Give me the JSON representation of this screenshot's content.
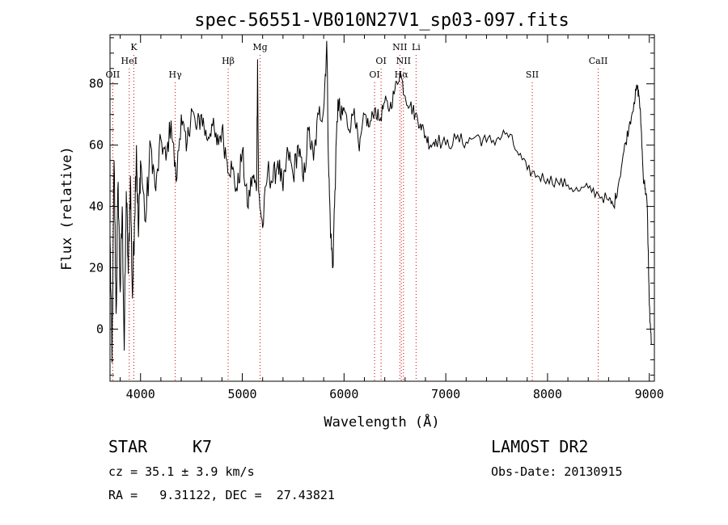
{
  "chart_data": {
    "type": "line",
    "title": "spec-56551-VB010N27V1_sp03-097.fits",
    "xlabel": "Wavelength (Å)",
    "ylabel": "Flux (relative)",
    "xlim": [
      3700,
      9050
    ],
    "ylim": [
      -17,
      96
    ],
    "xticks": [
      4000,
      5000,
      6000,
      7000,
      8000,
      9000
    ],
    "yticks": [
      0,
      20,
      40,
      60,
      80
    ],
    "grid": false,
    "line_color": "#000000",
    "marker_line_color": "#cc0000",
    "spectral_lines": [
      {
        "label": "OII",
        "wavelength": 3727,
        "row": 3
      },
      {
        "label": "K",
        "wavelength": 3934,
        "row": 1
      },
      {
        "label": "HeI",
        "wavelength": 3889,
        "row": 2
      },
      {
        "label": "Hγ",
        "wavelength": 4341,
        "row": 3
      },
      {
        "label": "Hβ",
        "wavelength": 4861,
        "row": 2
      },
      {
        "label": "Mg",
        "wavelength": 5175,
        "row": 1
      },
      {
        "label": "OI",
        "wavelength": 6300,
        "row": 3
      },
      {
        "label": "OI",
        "wavelength": 6364,
        "row": 2
      },
      {
        "label": "NII",
        "wavelength": 6548,
        "row": 1
      },
      {
        "label": "NII",
        "wavelength": 6584,
        "row": 2
      },
      {
        "label": "Hα",
        "wavelength": 6563,
        "row": 3
      },
      {
        "label": "Li",
        "wavelength": 6708,
        "row": 1
      },
      {
        "label": "SII",
        "wavelength": 7850,
        "row": 3
      },
      {
        "label": "CaII",
        "wavelength": 8498,
        "row": 2
      }
    ],
    "series": [
      {
        "points": [
          [
            3700,
            30
          ],
          [
            3720,
            -11
          ],
          [
            3740,
            55
          ],
          [
            3760,
            5
          ],
          [
            3780,
            48
          ],
          [
            3800,
            12
          ],
          [
            3820,
            40
          ],
          [
            3840,
            -7
          ],
          [
            3860,
            45
          ],
          [
            3880,
            18
          ],
          [
            3900,
            50
          ],
          [
            3920,
            10
          ],
          [
            3940,
            35
          ],
          [
            3960,
            60
          ],
          [
            3980,
            30
          ],
          [
            4000,
            55
          ],
          [
            4050,
            35
          ],
          [
            4100,
            60
          ],
          [
            4150,
            45
          ],
          [
            4200,
            62
          ],
          [
            4250,
            55
          ],
          [
            4300,
            68
          ],
          [
            4350,
            48
          ],
          [
            4400,
            70
          ],
          [
            4450,
            58
          ],
          [
            4500,
            72
          ],
          [
            4550,
            65
          ],
          [
            4600,
            70
          ],
          [
            4650,
            62
          ],
          [
            4700,
            67
          ],
          [
            4750,
            60
          ],
          [
            4800,
            65
          ],
          [
            4850,
            55
          ],
          [
            4900,
            52
          ],
          [
            4950,
            45
          ],
          [
            5000,
            58
          ],
          [
            5050,
            40
          ],
          [
            5100,
            50
          ],
          [
            5140,
            45
          ],
          [
            5150,
            88
          ],
          [
            5160,
            45
          ],
          [
            5200,
            33
          ],
          [
            5250,
            52
          ],
          [
            5300,
            48
          ],
          [
            5350,
            55
          ],
          [
            5400,
            45
          ],
          [
            5450,
            58
          ],
          [
            5500,
            50
          ],
          [
            5550,
            60
          ],
          [
            5600,
            48
          ],
          [
            5650,
            65
          ],
          [
            5700,
            55
          ],
          [
            5750,
            70
          ],
          [
            5800,
            72
          ],
          [
            5830,
            94
          ],
          [
            5850,
            50
          ],
          [
            5870,
            30
          ],
          [
            5890,
            20
          ],
          [
            5910,
            45
          ],
          [
            5940,
            75
          ],
          [
            5970,
            68
          ],
          [
            6000,
            72
          ],
          [
            6050,
            65
          ],
          [
            6100,
            72
          ],
          [
            6150,
            58
          ],
          [
            6200,
            70
          ],
          [
            6250,
            66
          ],
          [
            6300,
            72
          ],
          [
            6350,
            68
          ],
          [
            6400,
            74
          ],
          [
            6450,
            72
          ],
          [
            6500,
            78
          ],
          [
            6550,
            84
          ],
          [
            6600,
            76
          ],
          [
            6650,
            73
          ],
          [
            6700,
            70
          ],
          [
            6750,
            67
          ],
          [
            6800,
            63
          ],
          [
            6850,
            60
          ],
          [
            6900,
            62
          ],
          [
            7000,
            60
          ],
          [
            7100,
            62
          ],
          [
            7200,
            61
          ],
          [
            7300,
            63
          ],
          [
            7400,
            61
          ],
          [
            7500,
            62
          ],
          [
            7600,
            64
          ],
          [
            7700,
            58
          ],
          [
            7800,
            52
          ],
          [
            7900,
            50
          ],
          [
            8000,
            49
          ],
          [
            8100,
            48
          ],
          [
            8200,
            47
          ],
          [
            8300,
            45
          ],
          [
            8400,
            46
          ],
          [
            8500,
            44
          ],
          [
            8600,
            42
          ],
          [
            8650,
            40
          ],
          [
            8700,
            48
          ],
          [
            8750,
            58
          ],
          [
            8800,
            66
          ],
          [
            8850,
            74
          ],
          [
            8880,
            79
          ],
          [
            8900,
            76
          ],
          [
            8920,
            66
          ],
          [
            8940,
            50
          ],
          [
            8960,
            46
          ],
          [
            8980,
            40
          ],
          [
            9000,
            8
          ],
          [
            9020,
            -5
          ]
        ]
      }
    ]
  },
  "info": {
    "object_class": "STAR",
    "subclass": "K7",
    "survey": "LAMOST DR2",
    "cz": "cz = 35.1 ± 3.9 km/s",
    "obs_date": "Obs-Date: 20130915",
    "coords": "RA =   9.31122, DEC =  27.43821"
  }
}
